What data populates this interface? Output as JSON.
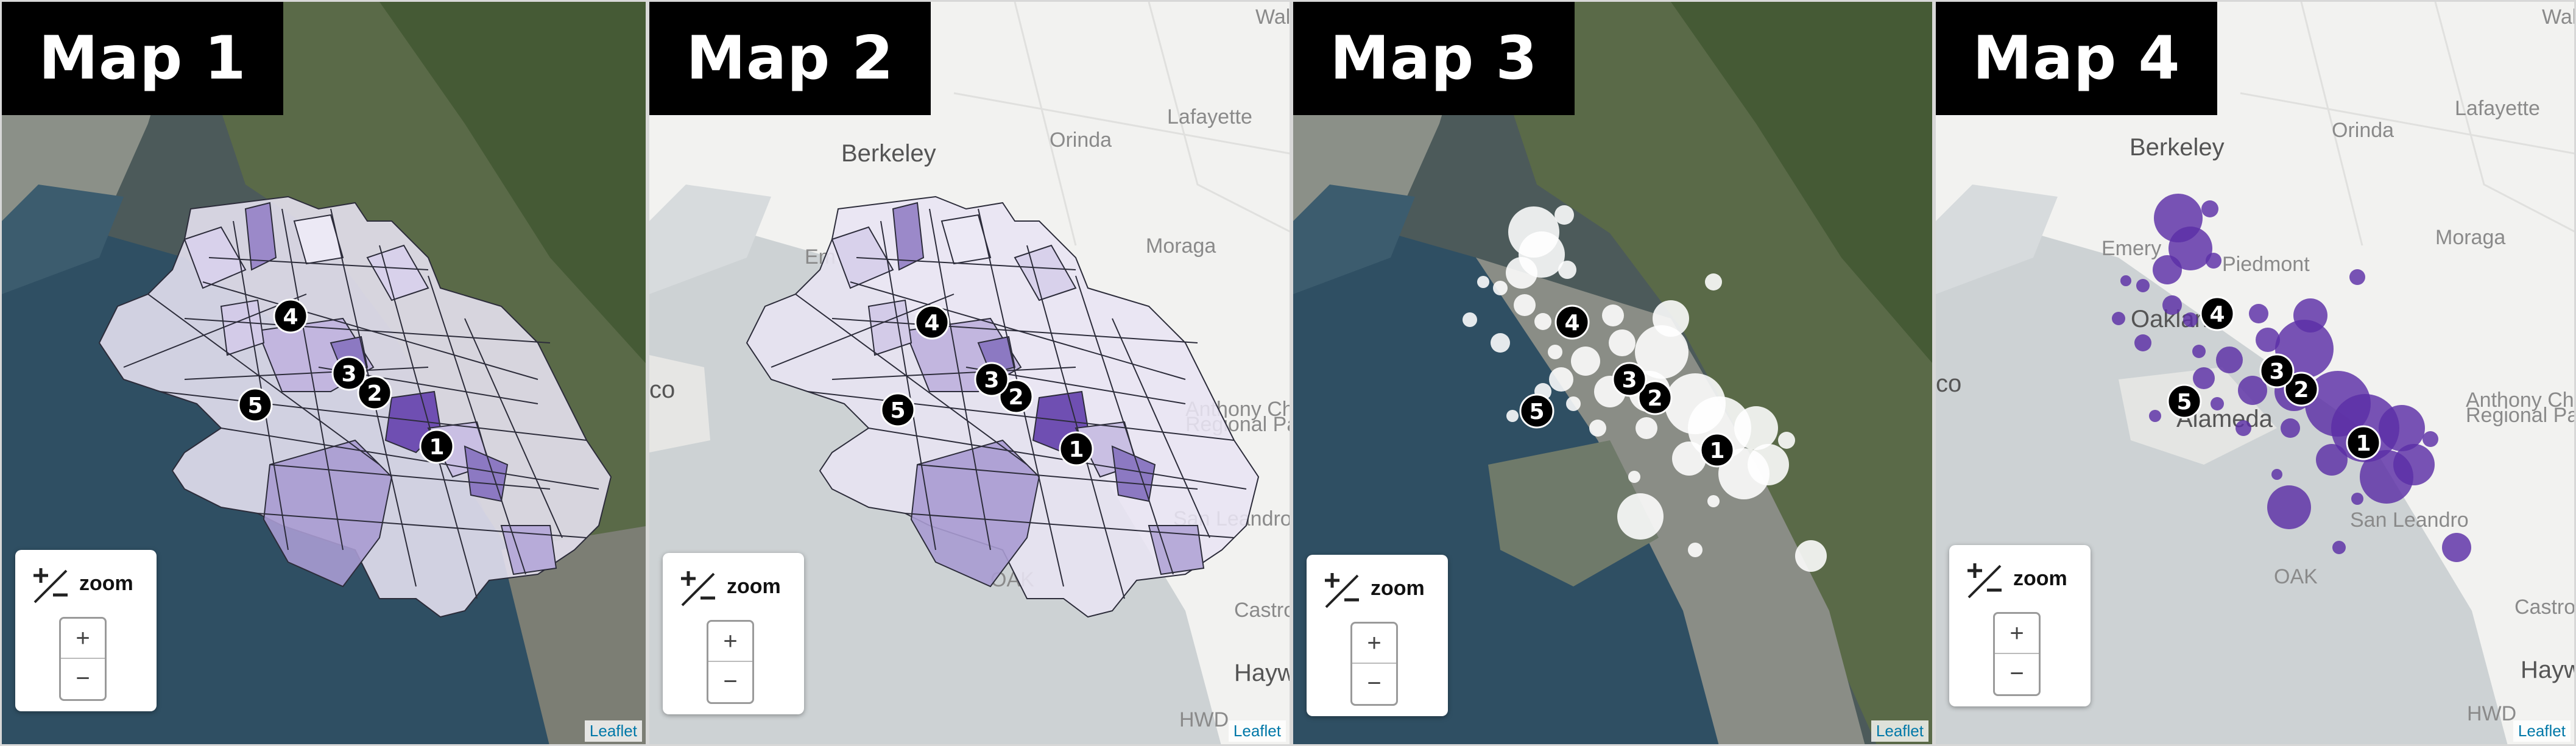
{
  "maps": [
    {
      "title": "Map 1",
      "zoom_label": "zoom",
      "zoom_in": "+",
      "zoom_out": "−",
      "attribution": "Leaflet",
      "basemap": "satellite",
      "layer": "choropleth",
      "accent": "#5b3ea1",
      "place_labels": []
    },
    {
      "title": "Map 2",
      "zoom_label": "zoom",
      "zoom_in": "+",
      "zoom_out": "−",
      "attribution": "Leaflet",
      "basemap": "light",
      "layer": "choropleth",
      "accent": "#5b3ea1",
      "place_labels": [
        "Berkeley",
        "Orinda",
        "Lafayette",
        "Moraga",
        "Em",
        "co",
        "Anthony Chabot",
        "Regional Park",
        "Hayw",
        "HWD",
        "San Leandro",
        "Castro V",
        "OAK",
        "Wal"
      ]
    },
    {
      "title": "Map 3",
      "zoom_label": "zoom",
      "zoom_in": "+",
      "zoom_out": "−",
      "attribution": "Leaflet",
      "basemap": "satellite",
      "layer": "bubbles",
      "accent": "#ffffff",
      "place_labels": []
    },
    {
      "title": "Map 4",
      "zoom_label": "zoom",
      "zoom_in": "+",
      "zoom_out": "−",
      "attribution": "Leaflet",
      "basemap": "light",
      "layer": "bubbles",
      "accent": "#5b2ea6",
      "place_labels": [
        "Berkeley",
        "Orinda",
        "Lafayette",
        "Moraga",
        "Emery",
        "Piedmont",
        "Oakland",
        "Alameda",
        "co",
        "Anthony Chabot",
        "Regional Park",
        "San Leandro",
        "OAK",
        "Hayw",
        "HWD",
        "Castro V",
        "Wal"
      ]
    }
  ],
  "markers": [
    "1",
    "2",
    "3",
    "4",
    "5"
  ]
}
